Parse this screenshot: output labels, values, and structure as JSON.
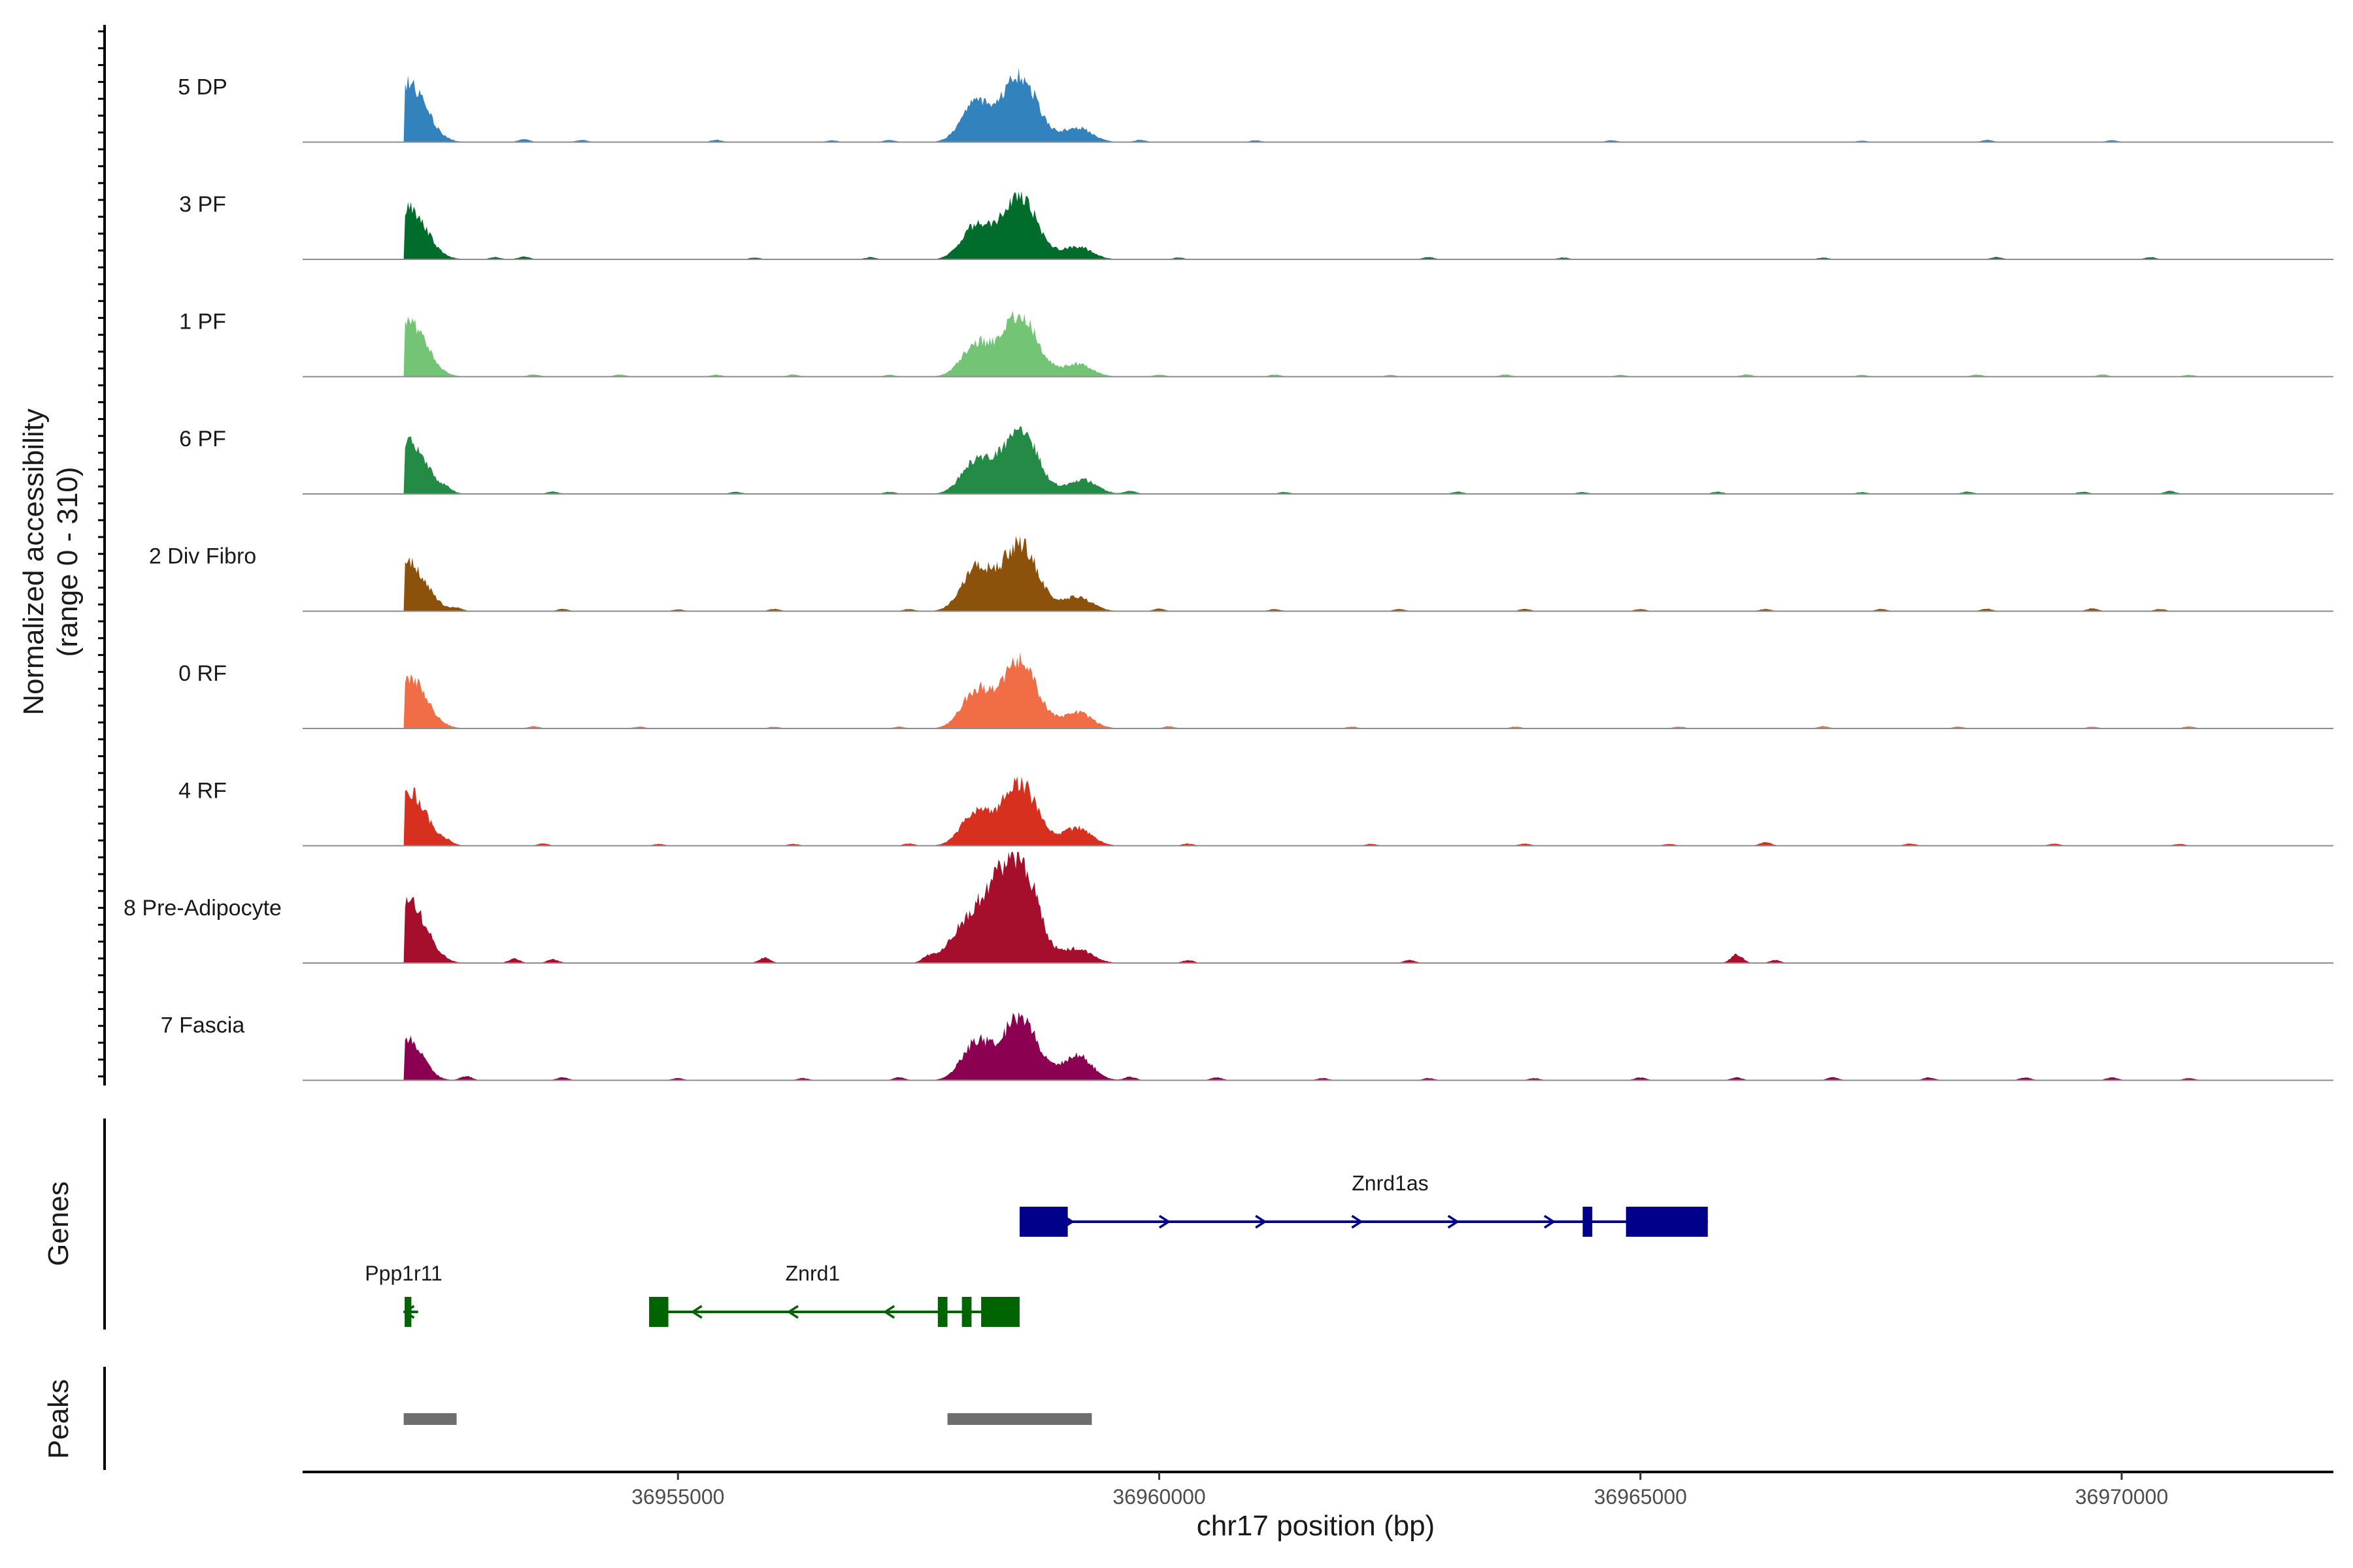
{
  "chart_data": {
    "type": "area",
    "title": "",
    "xlabel": "chr17 position (bp)",
    "ylabel": "Normalized accessibility",
    "ylabel_range": "(range 0 - 310)",
    "ylim": [
      0,
      310
    ],
    "xlim": [
      36951100,
      36972200
    ],
    "x_ticks": [
      36955000,
      36960000,
      36965000,
      36970000
    ],
    "x_tick_labels": [
      "36955000",
      "36960000",
      "36965000",
      "36970000"
    ],
    "tracks": [
      {
        "name": "5 DP",
        "color": "#3182bd",
        "peaks": [
          [
            36952200,
            165
          ],
          [
            36958100,
            110
          ],
          [
            36958550,
            185
          ],
          [
            36959150,
            40
          ]
        ],
        "noise": [
          [
            36953400,
            8
          ],
          [
            36954000,
            6
          ],
          [
            36955400,
            6
          ],
          [
            36956600,
            5
          ],
          [
            36957200,
            6
          ],
          [
            36959800,
            6
          ],
          [
            36961000,
            5
          ],
          [
            36964700,
            5
          ],
          [
            36967300,
            4
          ],
          [
            36968600,
            6
          ],
          [
            36969900,
            5
          ]
        ]
      },
      {
        "name": "3 PF",
        "color": "#006d2c",
        "peaks": [
          [
            36952200,
            145
          ],
          [
            36958100,
            95
          ],
          [
            36958550,
            175
          ],
          [
            36959150,
            35
          ]
        ],
        "noise": [
          [
            36953100,
            6
          ],
          [
            36953400,
            8
          ],
          [
            36955800,
            5
          ],
          [
            36957000,
            6
          ],
          [
            36960200,
            5
          ],
          [
            36962800,
            6
          ],
          [
            36964200,
            5
          ],
          [
            36966900,
            5
          ],
          [
            36968700,
            6
          ],
          [
            36970300,
            6
          ]
        ]
      },
      {
        "name": "1 PF",
        "color": "#74c476",
        "peaks": [
          [
            36952200,
            155
          ],
          [
            36958100,
            90
          ],
          [
            36958550,
            170
          ],
          [
            36959150,
            35
          ]
        ],
        "noise": [
          [
            36953500,
            6
          ],
          [
            36954400,
            6
          ],
          [
            36955400,
            5
          ],
          [
            36956200,
            6
          ],
          [
            36957200,
            5
          ],
          [
            36960000,
            6
          ],
          [
            36961200,
            6
          ],
          [
            36962400,
            5
          ],
          [
            36963600,
            6
          ],
          [
            36964800,
            5
          ],
          [
            36966100,
            6
          ],
          [
            36967300,
            5
          ],
          [
            36968500,
            6
          ],
          [
            36969800,
            6
          ],
          [
            36970700,
            5
          ]
        ]
      },
      {
        "name": "6 PF",
        "color": "#238b45",
        "peaks": [
          [
            36952200,
            150
          ],
          [
            36958100,
            95
          ],
          [
            36958550,
            180
          ],
          [
            36959200,
            40
          ]
        ],
        "noise": [
          [
            36952600,
            10
          ],
          [
            36953700,
            6
          ],
          [
            36955600,
            6
          ],
          [
            36957200,
            6
          ],
          [
            36959700,
            8
          ],
          [
            36961300,
            5
          ],
          [
            36963100,
            6
          ],
          [
            36964400,
            5
          ],
          [
            36965800,
            6
          ],
          [
            36967300,
            5
          ],
          [
            36968400,
            6
          ],
          [
            36969600,
            6
          ],
          [
            36970500,
            8
          ]
        ]
      },
      {
        "name": "2 Div Fibro",
        "color": "#8c510a",
        "peaks": [
          [
            36952200,
            135
          ],
          [
            36958100,
            120
          ],
          [
            36958550,
            190
          ],
          [
            36959150,
            40
          ]
        ],
        "noise": [
          [
            36952700,
            8
          ],
          [
            36953800,
            6
          ],
          [
            36955000,
            5
          ],
          [
            36956000,
            6
          ],
          [
            36957400,
            6
          ],
          [
            36960000,
            7
          ],
          [
            36961200,
            6
          ],
          [
            36962500,
            6
          ],
          [
            36963800,
            6
          ],
          [
            36965000,
            6
          ],
          [
            36966300,
            6
          ],
          [
            36967500,
            6
          ],
          [
            36968600,
            7
          ],
          [
            36969700,
            8
          ],
          [
            36970400,
            6
          ]
        ]
      },
      {
        "name": "0 RF",
        "color": "#f16d45",
        "peaks": [
          [
            36952200,
            145
          ],
          [
            36958100,
            105
          ],
          [
            36958550,
            185
          ],
          [
            36959150,
            45
          ]
        ],
        "noise": [
          [
            36953500,
            6
          ],
          [
            36954600,
            5
          ],
          [
            36956000,
            5
          ],
          [
            36957300,
            5
          ],
          [
            36960100,
            6
          ],
          [
            36962000,
            5
          ],
          [
            36963700,
            5
          ],
          [
            36965400,
            5
          ],
          [
            36966900,
            6
          ],
          [
            36968300,
            5
          ],
          [
            36969700,
            5
          ],
          [
            36970700,
            6
          ]
        ]
      },
      {
        "name": "4 RF",
        "color": "#d7301f",
        "peaks": [
          [
            36952200,
            150
          ],
          [
            36958100,
            95
          ],
          [
            36958550,
            175
          ],
          [
            36959150,
            50
          ]
        ],
        "noise": [
          [
            36952600,
            8
          ],
          [
            36953600,
            6
          ],
          [
            36954800,
            5
          ],
          [
            36956200,
            5
          ],
          [
            36957400,
            6
          ],
          [
            36960300,
            6
          ],
          [
            36962200,
            5
          ],
          [
            36963800,
            6
          ],
          [
            36965300,
            5
          ],
          [
            36966300,
            10
          ],
          [
            36967800,
            6
          ],
          [
            36969300,
            6
          ],
          [
            36970600,
            5
          ]
        ]
      },
      {
        "name": "8 Pre-Adipocyte",
        "color": "#a50f2c",
        "peaks": [
          [
            36952200,
            175
          ],
          [
            36957900,
            55
          ],
          [
            36958200,
            160
          ],
          [
            36958550,
            280
          ],
          [
            36959150,
            40
          ]
        ],
        "noise": [
          [
            36953300,
            12
          ],
          [
            36953700,
            10
          ],
          [
            36955900,
            15
          ],
          [
            36957600,
            15
          ],
          [
            36960300,
            8
          ],
          [
            36962600,
            8
          ],
          [
            36966000,
            24
          ],
          [
            36966400,
            8
          ]
        ]
      },
      {
        "name": "7 Fascia",
        "color": "#8c0051",
        "peaks": [
          [
            36952200,
            110
          ],
          [
            36958100,
            105
          ],
          [
            36958550,
            175
          ],
          [
            36959150,
            70
          ]
        ],
        "noise": [
          [
            36952800,
            12
          ],
          [
            36953800,
            8
          ],
          [
            36955000,
            6
          ],
          [
            36956300,
            6
          ],
          [
            36957300,
            8
          ],
          [
            36959700,
            10
          ],
          [
            36960600,
            8
          ],
          [
            36961700,
            6
          ],
          [
            36962800,
            6
          ],
          [
            36963900,
            6
          ],
          [
            36965000,
            8
          ],
          [
            36966000,
            8
          ],
          [
            36967000,
            8
          ],
          [
            36968000,
            8
          ],
          [
            36969000,
            8
          ],
          [
            36969900,
            8
          ],
          [
            36970700,
            6
          ]
        ]
      }
    ],
    "genes_label": "Genes",
    "peaks_label": "Peaks",
    "genes": [
      {
        "name": "Znrd1as",
        "strand": "+",
        "color": "#00008b",
        "start": 36958550,
        "end": 36965700,
        "exons": [
          [
            36958550,
            36959050
          ],
          [
            36964400,
            36964500
          ],
          [
            36964850,
            36965700
          ]
        ]
      },
      {
        "name": "Ppp1r11",
        "strand": "-",
        "color": "#006400",
        "start": 36952150,
        "end": 36952300,
        "exons": [
          [
            36952160,
            36952230
          ]
        ]
      },
      {
        "name": "Znrd1",
        "strand": "-",
        "color": "#006400",
        "start": 36954700,
        "end": 36958550,
        "exons": [
          [
            36954700,
            36954900
          ],
          [
            36957700,
            36957800
          ],
          [
            36957950,
            36958050
          ],
          [
            36958150,
            36958550
          ]
        ]
      }
    ],
    "peak_regions": [
      [
        36952150,
        36952700
      ],
      [
        36957800,
        36959300
      ]
    ]
  }
}
